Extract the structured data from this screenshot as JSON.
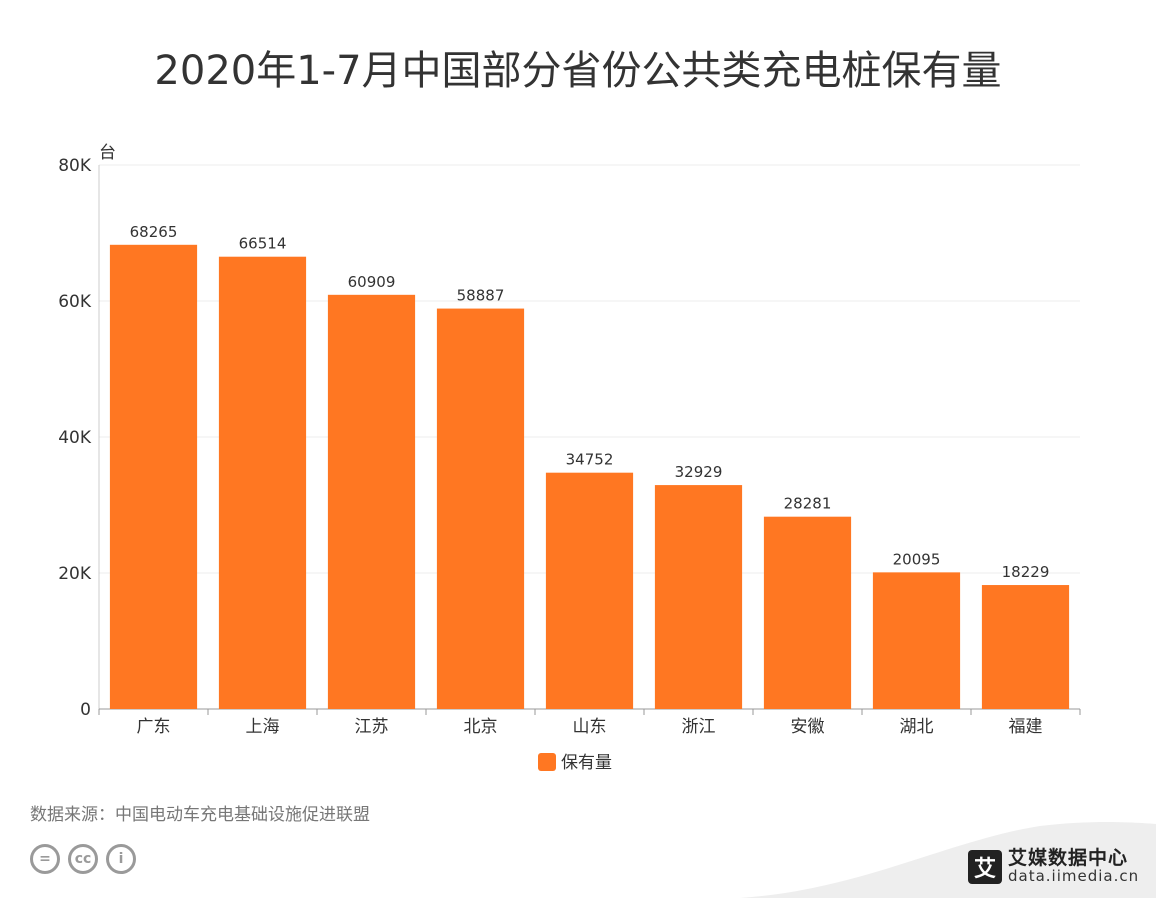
{
  "title": "2020年1-7月中国部分省份公共类充电桩保有量",
  "source": "数据来源：中国电动车充电基础设施促进联盟",
  "brand": {
    "mark": "艾",
    "name": "艾媒数据中心",
    "url": "data.iimedia.cn"
  },
  "cc_icons": [
    "=",
    "cc",
    "i"
  ],
  "colors": {
    "bar": "#ff7722",
    "axis": "#cccccc",
    "grid": "#eeeeee",
    "text": "#333333"
  },
  "chart_data": {
    "type": "bar",
    "title": "2020年1-7月中国部分省份公共类充电桩保有量",
    "ylabel": "台",
    "ylim": [
      0,
      80000
    ],
    "yticks": [
      0,
      20000,
      40000,
      60000,
      80000
    ],
    "ytick_labels": [
      "0",
      "20K",
      "40K",
      "60K",
      "80K"
    ],
    "categories": [
      "广东",
      "上海",
      "江苏",
      "北京",
      "山东",
      "浙江",
      "安徽",
      "湖北",
      "福建"
    ],
    "series": [
      {
        "name": "保有量",
        "values": [
          68265,
          66514,
          60909,
          58887,
          34752,
          32929,
          28281,
          20095,
          18229
        ]
      }
    ],
    "legend": "bottom-center",
    "grid": true
  }
}
